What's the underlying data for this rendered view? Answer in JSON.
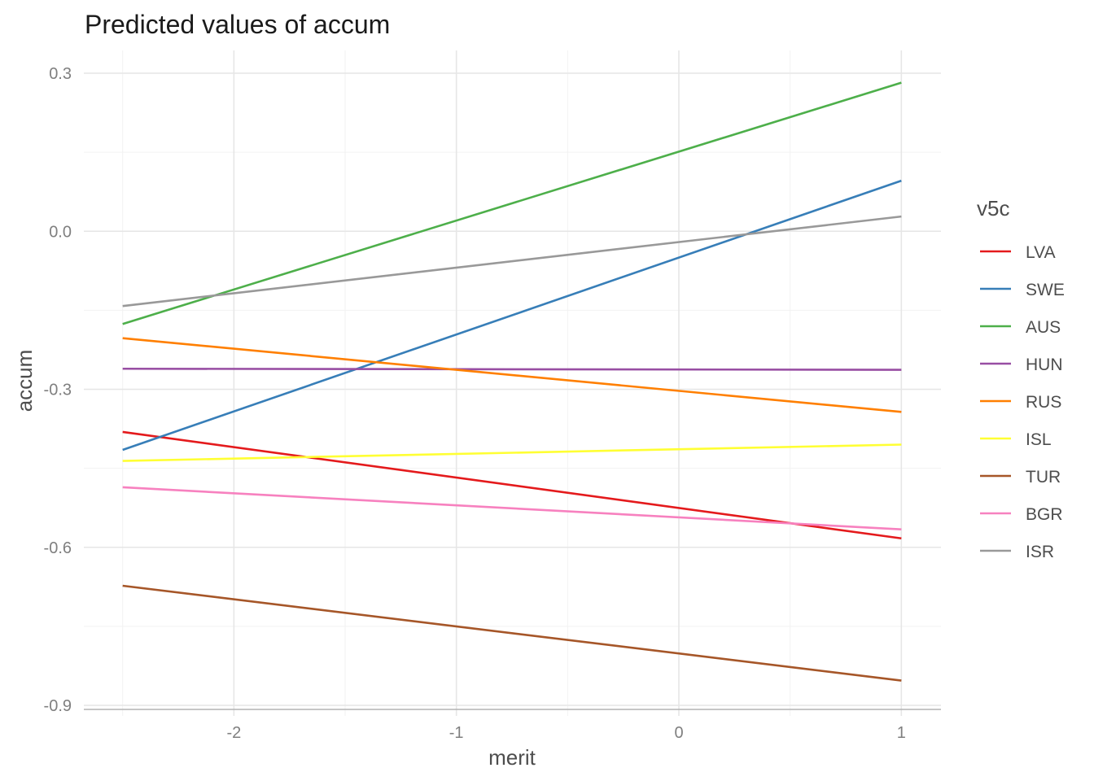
{
  "chart_data": {
    "type": "line",
    "title": "Predicted values of accum",
    "xlabel": "merit",
    "ylabel": "accum",
    "xlim": [
      -2.5,
      1
    ],
    "ylim": [
      -0.9,
      0.3
    ],
    "x_ticks": [
      -2,
      -1,
      0,
      1
    ],
    "x_tick_labels": [
      "-2",
      "-1",
      "0",
      "1"
    ],
    "y_ticks": [
      0.3,
      0.0,
      -0.3,
      -0.6,
      -0.9
    ],
    "y_tick_labels": [
      "0.3",
      "0.0",
      "-0.3",
      "-0.6",
      "-0.9"
    ],
    "grid": true,
    "legend_title": "v5c",
    "legend_position": "right",
    "series": [
      {
        "name": "LVA",
        "color": "#e41a1c",
        "x": [
          -2.5,
          1
        ],
        "y": [
          -0.381,
          -0.583
        ]
      },
      {
        "name": "SWE",
        "color": "#377eb8",
        "x": [
          -2.5,
          1
        ],
        "y": [
          -0.415,
          0.096
        ]
      },
      {
        "name": "AUS",
        "color": "#4daf4a",
        "x": [
          -2.5,
          1
        ],
        "y": [
          -0.176,
          0.282
        ]
      },
      {
        "name": "HUN",
        "color": "#984ea3",
        "x": [
          -2.5,
          1
        ],
        "y": [
          -0.261,
          -0.263
        ]
      },
      {
        "name": "RUS",
        "color": "#ff7f00",
        "x": [
          -2.5,
          1
        ],
        "y": [
          -0.203,
          -0.343
        ]
      },
      {
        "name": "ISL",
        "color": "#ffff33",
        "x": [
          -2.5,
          1
        ],
        "y": [
          -0.436,
          -0.405
        ]
      },
      {
        "name": "TUR",
        "color": "#a65628",
        "x": [
          -2.5,
          1
        ],
        "y": [
          -0.673,
          -0.853
        ]
      },
      {
        "name": "BGR",
        "color": "#f781bf",
        "x": [
          -2.5,
          1
        ],
        "y": [
          -0.486,
          -0.566
        ]
      },
      {
        "name": "ISR",
        "color": "#999999",
        "x": [
          -2.5,
          1
        ],
        "y": [
          -0.142,
          0.028
        ]
      }
    ]
  }
}
